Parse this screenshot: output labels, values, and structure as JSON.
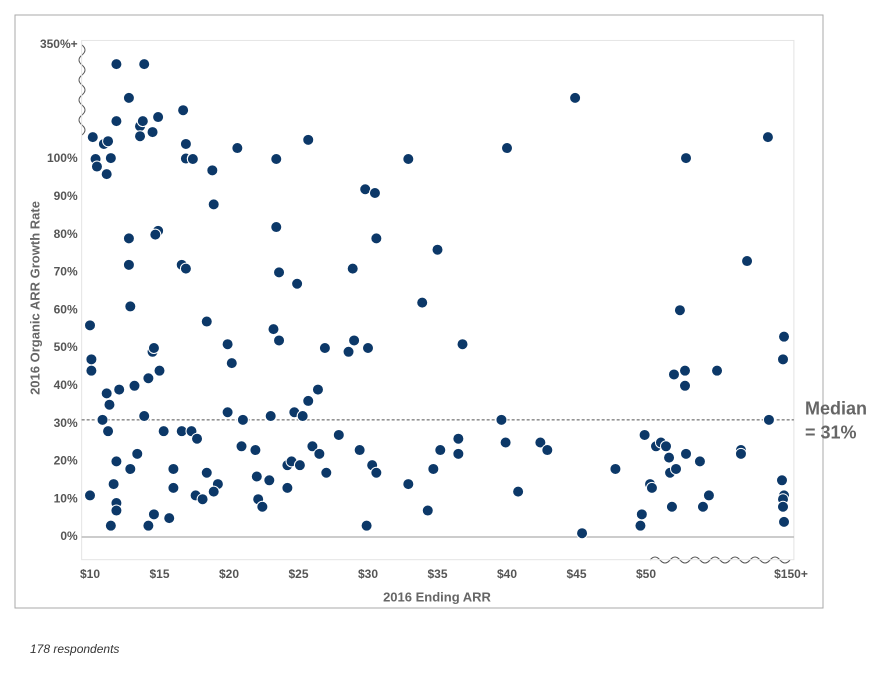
{
  "chart_data": {
    "type": "scatter",
    "x_label": "2016 Ending ARR",
    "y_label": "2016 Organic ARR Growth Rate",
    "note": "178 respondents",
    "color": "#0c3868",
    "xlim": [
      9.4,
      152
    ],
    "ylim": [
      -6,
      360
    ],
    "xticks": [
      {
        "value": 10,
        "label": "$10"
      },
      {
        "value": 15,
        "label": "$15"
      },
      {
        "value": 20,
        "label": "$20"
      },
      {
        "value": 25,
        "label": "$25"
      },
      {
        "value": 30,
        "label": "$30"
      },
      {
        "value": 35,
        "label": "$35"
      },
      {
        "value": 40,
        "label": "$40"
      },
      {
        "value": 45,
        "label": "$45"
      },
      {
        "value": 50,
        "label": "$50"
      },
      {
        "value": 150,
        "label": "$150+"
      }
    ],
    "yticks": [
      {
        "value": 0,
        "label": "0%"
      },
      {
        "value": 10,
        "label": "10%"
      },
      {
        "value": 20,
        "label": "20%"
      },
      {
        "value": 30,
        "label": "30%"
      },
      {
        "value": 40,
        "label": "40%"
      },
      {
        "value": 50,
        "label": "50%"
      },
      {
        "value": 60,
        "label": "60%"
      },
      {
        "value": 70,
        "label": "70%"
      },
      {
        "value": 80,
        "label": "80%"
      },
      {
        "value": 90,
        "label": "90%"
      },
      {
        "value": 100,
        "label": "100%"
      },
      {
        "value": 350,
        "label": "350%+"
      }
    ],
    "median": {
      "value": 31,
      "label": [
        "Median",
        "= 31%"
      ]
    },
    "x": [
      10.2,
      10,
      10.1,
      10.1,
      10,
      10.4,
      10.5,
      11,
      11.3,
      11.2,
      11.5,
      10.9,
      11.2,
      11.4,
      11.3,
      11.9,
      11.9,
      12.1,
      11.5,
      11.7,
      11.9,
      11.9,
      11.9,
      12.8,
      12.8,
      12.8,
      12.9,
      13.2,
      13.4,
      12.9,
      13.9,
      13.6,
      13.8,
      13.6,
      14.5,
      14.9,
      14.9,
      14.7,
      14.5,
      14.6,
      14.2,
      13.9,
      15,
      15.3,
      14.6,
      14.2,
      15.7,
      16,
      16,
      16.7,
      16.9,
      16.9,
      17.4,
      17.4,
      16.6,
      16.9,
      16.6,
      17.3,
      17.7,
      17.6,
      18.1,
      18.4,
      18.8,
      18.9,
      18.4,
      19.2,
      18.9,
      20.6,
      19.9,
      20.2,
      19.9,
      20.9,
      21,
      21.9,
      22,
      22.1,
      22.4,
      22.9,
      23.4,
      23.4,
      23.6,
      23.2,
      23.6,
      23,
      24.2,
      24.5,
      24.2,
      24.7,
      25.1,
      24.9,
      25.3,
      25.7,
      25.7,
      26,
      26.4,
      26.5,
      26.9,
      27,
      27.9,
      28.6,
      28.9,
      29,
      29.4,
      29.8,
      30.5,
      30,
      30.3,
      30.6,
      30.6,
      29.9,
      32.9,
      32.9,
      33.9,
      34.3,
      34.7,
      35,
      35.2,
      36.5,
      36.5,
      36.8,
      39.6,
      39.9,
      40,
      40.8,
      42.4,
      42.9,
      44.9,
      45.4,
      47.8,
      49.9,
      49.7,
      49.6,
      52.8,
      54.1,
      56.9,
      60.3,
      63.8,
      65.9,
      66.6,
      67.9,
      69.3,
      70.7,
      73.4,
      76.9,
      77.6,
      76.9,
      77.6,
      87.2,
      89.3,
      93.4,
      99,
      115.5,
      115.5,
      119.7,
      134.1,
      134.8,
      145.2,
      144.5,
      143.8,
      145.2,
      144.5,
      144.5,
      145.2
    ],
    "values": [
      148,
      56,
      47,
      44,
      11,
      100,
      98,
      133,
      139,
      96,
      102,
      31,
      38,
      35,
      28,
      308,
      183,
      39,
      3,
      14,
      20,
      9,
      7,
      234,
      79,
      72,
      61,
      40,
      22,
      18,
      308,
      172,
      183,
      150,
      159,
      192,
      81,
      80,
      49,
      50,
      42,
      32,
      44,
      28,
      6,
      3,
      5,
      18,
      13,
      207,
      133,
      101,
      101,
      100,
      72,
      71,
      28,
      28,
      26,
      11,
      10,
      17,
      97,
      88,
      57,
      14,
      12,
      124,
      51,
      46,
      33,
      24,
      31,
      23,
      16,
      10,
      8,
      15,
      100,
      82,
      70,
      55,
      52,
      32,
      19,
      20,
      13,
      33,
      19,
      67,
      32,
      142,
      36,
      24,
      39,
      22,
      50,
      17,
      27,
      49,
      71,
      52,
      23,
      92,
      91,
      50,
      19,
      17,
      79,
      3,
      14,
      100,
      62,
      7,
      18,
      76,
      23,
      26,
      22,
      51,
      31,
      25,
      124,
      12,
      25,
      23,
      234,
      1,
      18,
      27,
      6,
      3,
      14,
      13,
      24,
      25,
      24,
      21,
      17,
      8,
      43,
      18,
      60,
      44,
      102,
      40,
      22,
      20,
      8,
      11,
      44,
      23,
      22,
      73,
      148,
      31,
      53,
      47,
      15,
      11,
      10,
      8,
      4
    ]
  }
}
